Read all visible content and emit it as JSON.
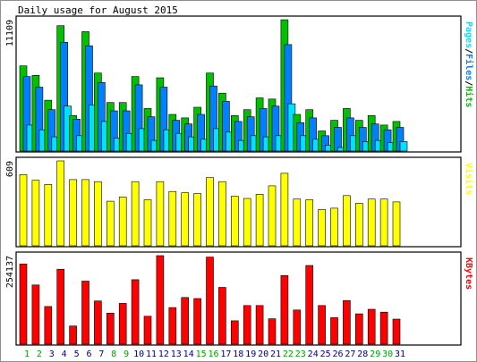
{
  "chart_data": {
    "type": "bar",
    "title": "Daily usage for August 2015",
    "categories": [
      "1",
      "2",
      "3",
      "4",
      "5",
      "6",
      "7",
      "8",
      "9",
      "10",
      "11",
      "12",
      "13",
      "14",
      "15",
      "16",
      "17",
      "18",
      "19",
      "20",
      "21",
      "22",
      "23",
      "24",
      "25",
      "26",
      "27",
      "28",
      "29",
      "30",
      "31"
    ],
    "weekend_days": [
      "1",
      "2",
      "8",
      "9",
      "15",
      "16",
      "22",
      "23",
      "29",
      "30"
    ],
    "colors": {
      "hits": "#00c000",
      "files": "#0080ff",
      "pages": "#00e0ff",
      "visits": "#ffff00",
      "kbytes": "#ff0000",
      "weekend_label": "#00a000",
      "weekday_label": "#000080"
    },
    "panels": [
      {
        "id": "hits",
        "ylabel_parts": [
          {
            "text": "Pages",
            "color": "#00e0ff"
          },
          {
            "text": "/",
            "color": "#000000"
          },
          {
            "text": "Files",
            "color": "#0080ff"
          },
          {
            "text": "/",
            "color": "#000000"
          },
          {
            "text": "Hits",
            "color": "#00c000"
          }
        ],
        "max_label": "11109",
        "ymax": 11109,
        "series": [
          {
            "name": "Hits",
            "values": [
              7200,
              6400,
              4300,
              10600,
              3000,
              10100,
              6600,
              4100,
              4100,
              6300,
              3600,
              6200,
              3100,
              2800,
              3700,
              6600,
              4900,
              3000,
              3500,
              4500,
              4400,
              11100,
              3100,
              3500,
              1700,
              2600,
              3600,
              2600,
              3000,
              2200,
              2500
            ]
          },
          {
            "name": "Files",
            "values": [
              6300,
              5400,
              3500,
              9200,
              2700,
              8900,
              5800,
              3400,
              3400,
              5600,
              2900,
              5400,
              2600,
              2300,
              3100,
              5500,
              4200,
              2500,
              2900,
              3600,
              3800,
              9000,
              2400,
              2800,
              1300,
              2000,
              2800,
              2000,
              2300,
              1800,
              2000
            ]
          },
          {
            "name": "Pages",
            "values": [
              2200,
              1800,
              1200,
              3800,
              1300,
              3900,
              2500,
              1100,
              1500,
              1900,
              900,
              1800,
              1500,
              1200,
              1000,
              1900,
              1600,
              900,
              1300,
              1200,
              1300,
              4000,
              1300,
              1000,
              500,
              300,
              1300,
              800,
              900,
              700,
              800
            ]
          }
        ]
      },
      {
        "id": "visits",
        "ylabel_parts": [
          {
            "text": "Visits",
            "color": "#ffff00"
          }
        ],
        "max_label": "609",
        "ymax": 609,
        "series": [
          {
            "name": "Visits",
            "values": [
              510,
              470,
              440,
              609,
              475,
              475,
              460,
              320,
              350,
              460,
              330,
              460,
              390,
              380,
              375,
              490,
              460,
              355,
              340,
              370,
              430,
              520,
              335,
              330,
              260,
              270,
              360,
              305,
              335,
              335,
              315
            ]
          }
        ]
      },
      {
        "id": "kbytes",
        "ylabel_parts": [
          {
            "text": "KBytes",
            "color": "#ff0000"
          }
        ],
        "max_label": "254137",
        "ymax": 254137,
        "series": [
          {
            "name": "KBytes",
            "values": [
              230000,
              170000,
              108000,
              215000,
              52000,
              181000,
              124000,
              89000,
              117000,
              185000,
              80000,
              254137,
              105000,
              134000,
              131000,
              250000,
              163000,
              67000,
              111000,
              111000,
              73000,
              197000,
              98000,
              226000,
              111000,
              76000,
              125000,
              87000,
              100000,
              92000,
              72000
            ]
          }
        ]
      }
    ]
  }
}
